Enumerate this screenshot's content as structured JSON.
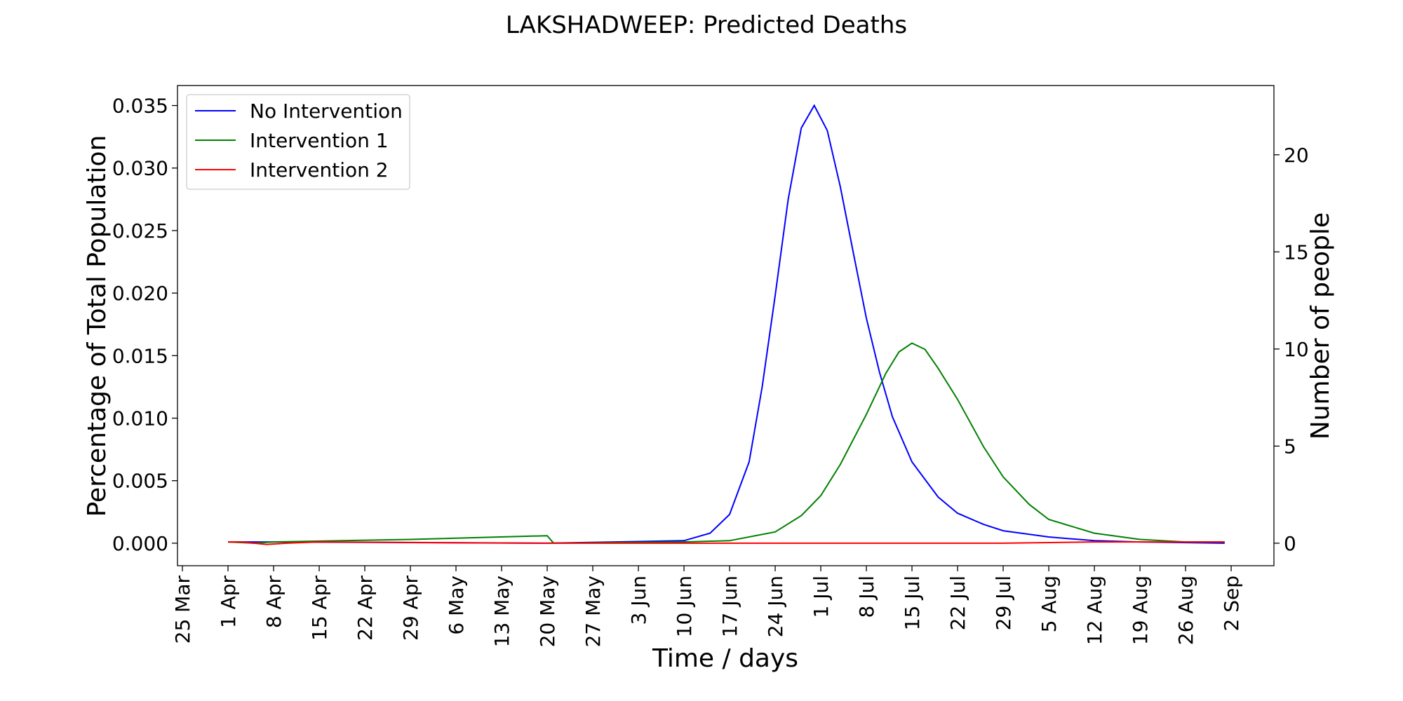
{
  "chart_data": {
    "type": "line",
    "title": "LAKSHADWEEP: Predicted Deaths",
    "xlabel": "Time / days",
    "ylabel": "Percentage of Total Population",
    "ylabel_right": "Number of people",
    "x_ticks": [
      "25 Mar",
      "1 Apr",
      "8 Apr",
      "15 Apr",
      "22 Apr",
      "29 Apr",
      "6 May",
      "13 May",
      "20 May",
      "27 May",
      "3 Jun",
      "10 Jun",
      "17 Jun",
      "24 Jun",
      "1 Jul",
      "8 Jul",
      "15 Jul",
      "22 Jul",
      "29 Jul",
      "5 Aug",
      "12 Aug",
      "19 Aug",
      "26 Aug",
      "2 Sep"
    ],
    "x_start": "25 Mar",
    "y_ticks": [
      "0.000",
      "0.005",
      "0.010",
      "0.015",
      "0.020",
      "0.025",
      "0.030",
      "0.035"
    ],
    "y_right_ticks": [
      "0",
      "5",
      "10",
      "15",
      "20"
    ],
    "y_right_values": [
      0,
      5,
      10,
      15,
      20
    ],
    "ylim": [
      -0.0018,
      0.0366
    ],
    "y_right_per_percent": 643.9,
    "grid": false,
    "legend": "upper-left",
    "series": [
      {
        "name": "No Intervention",
        "color": "#0000ff",
        "points": [
          [
            "1 Apr",
            0.0001
          ],
          [
            "8 Apr",
            0.0001
          ],
          [
            "20 May",
            0.0
          ],
          [
            "10 Jun",
            0.0002
          ],
          [
            "14 Jun",
            0.0008
          ],
          [
            "17 Jun",
            0.0023
          ],
          [
            "20 Jun",
            0.0065
          ],
          [
            "22 Jun",
            0.0125
          ],
          [
            "24 Jun",
            0.0198
          ],
          [
            "26 Jun",
            0.0275
          ],
          [
            "28 Jun",
            0.0332
          ],
          [
            "30 Jun",
            0.035
          ],
          [
            "2 Jul",
            0.033
          ],
          [
            "4 Jul",
            0.0285
          ],
          [
            "6 Jul",
            0.0232
          ],
          [
            "8 Jul",
            0.018
          ],
          [
            "10 Jul",
            0.0137
          ],
          [
            "12 Jul",
            0.0101
          ],
          [
            "15 Jul",
            0.0065
          ],
          [
            "19 Jul",
            0.0037
          ],
          [
            "22 Jul",
            0.0024
          ],
          [
            "26 Jul",
            0.0015
          ],
          [
            "29 Jul",
            0.001
          ],
          [
            "5 Aug",
            0.0005
          ],
          [
            "12 Aug",
            0.0002
          ],
          [
            "19 Aug",
            0.0001
          ],
          [
            "1 Sep",
            0.0
          ]
        ]
      },
      {
        "name": "Intervention 1",
        "color": "#008000",
        "points": [
          [
            "1 Apr",
            0.0001
          ],
          [
            "5 Apr",
            0.0
          ],
          [
            "8 Apr",
            0.0001
          ],
          [
            "29 Apr",
            0.0003
          ],
          [
            "20 May",
            0.0006
          ],
          [
            "21 May",
            0.0
          ],
          [
            "10 Jun",
            0.0001
          ],
          [
            "17 Jun",
            0.0002
          ],
          [
            "24 Jun",
            0.0009
          ],
          [
            "28 Jun",
            0.0022
          ],
          [
            "1 Jul",
            0.0038
          ],
          [
            "4 Jul",
            0.0063
          ],
          [
            "8 Jul",
            0.0103
          ],
          [
            "11 Jul",
            0.0136
          ],
          [
            "13 Jul",
            0.0153
          ],
          [
            "15 Jul",
            0.016
          ],
          [
            "17 Jul",
            0.0155
          ],
          [
            "19 Jul",
            0.014
          ],
          [
            "22 Jul",
            0.0115
          ],
          [
            "26 Jul",
            0.0077
          ],
          [
            "29 Jul",
            0.0053
          ],
          [
            "2 Aug",
            0.0031
          ],
          [
            "5 Aug",
            0.0019
          ],
          [
            "12 Aug",
            0.0008
          ],
          [
            "19 Aug",
            0.0003
          ],
          [
            "26 Aug",
            0.0001
          ],
          [
            "1 Sep",
            0.0001
          ]
        ]
      },
      {
        "name": "Intervention 2",
        "color": "#ff0000",
        "points": [
          [
            "1 Apr",
            0.0001
          ],
          [
            "3 Apr",
            0.0001
          ],
          [
            "5 Apr",
            0.0
          ],
          [
            "7 Apr",
            -0.0001
          ],
          [
            "10 Apr",
            0.0
          ],
          [
            "15 Apr",
            0.0001
          ],
          [
            "20 May",
            0.0
          ],
          [
            "29 Jul",
            0.0
          ],
          [
            "12 Aug",
            0.0001
          ],
          [
            "26 Aug",
            0.0001
          ],
          [
            "1 Sep",
            0.0001
          ]
        ]
      }
    ]
  }
}
